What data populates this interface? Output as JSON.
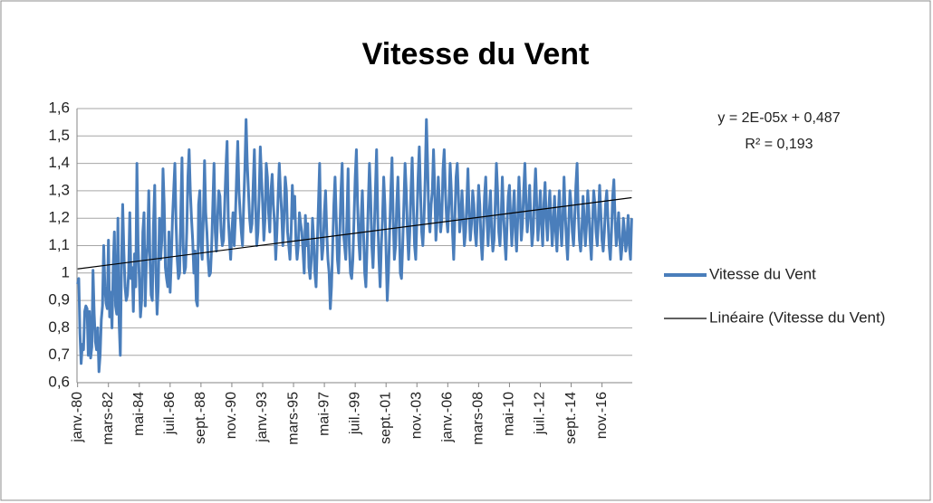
{
  "chart_data": {
    "type": "line",
    "title": "Vitesse du Vent",
    "annotations": [
      "y = 2E-05x + 0,487",
      "R² = 0,193"
    ],
    "legend": "right",
    "grid": true,
    "ylim": [
      0.6,
      1.6
    ],
    "yticks": [
      {
        "value": 0.6,
        "label": "0,6"
      },
      {
        "value": 0.7,
        "label": "0,7"
      },
      {
        "value": 0.8,
        "label": "0,8"
      },
      {
        "value": 0.9,
        "label": "0,9"
      },
      1,
      {
        "value": 1.1,
        "label": "1,1"
      },
      {
        "value": 1.2,
        "label": "1,2"
      },
      {
        "value": 1.3,
        "label": "1,3"
      },
      {
        "value": 1.4,
        "label": "1,4"
      },
      {
        "value": 1.5,
        "label": "1,5"
      },
      {
        "value": 1.6,
        "label": "1,6"
      }
    ],
    "categories": [
      "janv.-80",
      null,
      null,
      null,
      null,
      null,
      null,
      null,
      null,
      null,
      null,
      null,
      null,
      null,
      null,
      null,
      null,
      null,
      null,
      null,
      null,
      null,
      null,
      null,
      null,
      null,
      "mars-82",
      null,
      null,
      null,
      null,
      null,
      null,
      null,
      null,
      null,
      null,
      null,
      null,
      null,
      null,
      null,
      null,
      null,
      null,
      null,
      null,
      null,
      null,
      null,
      null,
      null,
      "mai-84",
      null,
      null,
      null,
      null,
      null,
      null,
      null,
      null,
      null,
      null,
      null,
      null,
      null,
      null,
      null,
      null,
      null,
      null,
      null,
      null,
      null,
      null,
      null,
      null,
      null,
      "juil.-86",
      null,
      null,
      null,
      null,
      null,
      null,
      null,
      null,
      null,
      null,
      null,
      null,
      null,
      null,
      null,
      null,
      null,
      null,
      null,
      null,
      null,
      null,
      null,
      null,
      null,
      "sept.-88",
      null,
      null,
      null,
      null,
      null,
      null,
      null,
      null,
      null,
      null,
      null,
      null,
      null,
      null,
      null,
      null,
      null,
      null,
      null,
      null,
      null,
      null,
      null,
      null,
      null,
      "nov.-90",
      null,
      null,
      null,
      null,
      null,
      null,
      null,
      null,
      null,
      null,
      null,
      null,
      null,
      null,
      null,
      null,
      null,
      null,
      null,
      null,
      null,
      null,
      null,
      null,
      null,
      "janv.-93",
      null,
      null,
      null,
      null,
      null,
      null,
      null,
      null,
      null,
      null,
      null,
      null,
      null,
      null,
      null,
      null,
      null,
      null,
      null,
      null,
      null,
      null,
      null,
      null,
      null,
      "mars-95",
      null,
      null,
      null,
      null,
      null,
      null,
      null,
      null,
      null,
      null,
      null,
      null,
      null,
      null,
      null,
      null,
      null,
      null,
      null,
      null,
      null,
      null,
      null,
      null,
      null,
      "mai-97",
      null,
      null,
      null,
      null,
      null,
      null,
      null,
      null,
      null,
      null,
      null,
      null,
      null,
      null,
      null,
      null,
      null,
      null,
      null,
      null,
      null,
      null,
      null,
      null,
      null,
      "juil.-99",
      null,
      null,
      null,
      null,
      null,
      null,
      null,
      null,
      null,
      null,
      null,
      null,
      null,
      null,
      null,
      null,
      null,
      null,
      null,
      null,
      null,
      null,
      null,
      null,
      null,
      "sept.-01",
      null,
      null,
      null,
      null,
      null,
      null,
      null,
      null,
      null,
      null,
      null,
      null,
      null,
      null,
      null,
      null,
      null,
      null,
      null,
      null,
      null,
      null,
      null,
      null,
      null,
      "nov.-03",
      null,
      null,
      null,
      null,
      null,
      null,
      null,
      null,
      null,
      null,
      null,
      null,
      null,
      null,
      null,
      null,
      null,
      null,
      null,
      null,
      null,
      null,
      null,
      null,
      null,
      "janv.-06",
      null,
      null,
      null,
      null,
      null,
      null,
      null,
      null,
      null,
      null,
      null,
      null,
      null,
      null,
      null,
      null,
      null,
      null,
      null,
      null,
      null,
      null,
      null,
      null,
      null,
      "mars-08",
      null,
      null,
      null,
      null,
      null,
      null,
      null,
      null,
      null,
      null,
      null,
      null,
      null,
      null,
      null,
      null,
      null,
      null,
      null,
      null,
      null,
      null,
      null,
      null,
      null,
      "mai-10",
      null,
      null,
      null,
      null,
      null,
      null,
      null,
      null,
      null,
      null,
      null,
      null,
      null,
      null,
      null,
      null,
      null,
      null,
      null,
      null,
      null,
      null,
      null,
      null,
      null,
      "juil.-12",
      null,
      null,
      null,
      null,
      null,
      null,
      null,
      null,
      null,
      null,
      null,
      null,
      null,
      null,
      null,
      null,
      null,
      null,
      null,
      null,
      null,
      null,
      null,
      null,
      null,
      "sept.-14",
      null,
      null,
      null,
      null,
      null,
      null,
      null,
      null,
      null,
      null,
      null,
      null,
      null,
      null,
      null,
      null,
      null,
      null,
      null,
      null,
      null,
      null,
      null,
      null,
      null,
      "nov.-16",
      null,
      null,
      null,
      null,
      null,
      null,
      null,
      null,
      null,
      null,
      null,
      null,
      null,
      null,
      null,
      null,
      null,
      null,
      null,
      null,
      null,
      null,
      null,
      null,
      null
    ],
    "series": [
      {
        "name": "Vitesse du Vent",
        "color": "#4a7ebb",
        "values": [
          0.96,
          0.98,
          0.78,
          0.67,
          0.74,
          0.72,
          0.86,
          0.88,
          0.87,
          0.7,
          0.86,
          0.69,
          0.73,
          1.01,
          0.85,
          0.75,
          0.72,
          0.8,
          0.64,
          0.7,
          0.83,
          0.88,
          1.1,
          0.95,
          0.89,
          0.87,
          1.12,
          0.84,
          0.93,
          0.8,
          1.02,
          1.15,
          0.88,
          0.85,
          1.2,
          0.82,
          0.7,
          1.03,
          1.25,
          1.08,
          0.95,
          0.9,
          0.92,
          1.0,
          1.22,
          0.98,
          1.02,
          0.86,
          1.07,
          0.95,
          1.4,
          1.1,
          0.98,
          0.84,
          0.9,
          1.15,
          1.22,
          0.88,
          1.05,
          1.1,
          1.3,
          1.05,
          0.92,
          0.9,
          1.18,
          1.32,
          1.0,
          0.85,
          0.95,
          1.2,
          1.05,
          1.12,
          1.38,
          1.25,
          1.02,
          0.98,
          0.95,
          1.15,
          0.93,
          1.05,
          1.2,
          1.3,
          1.4,
          1.18,
          1.05,
          0.98,
          1.0,
          1.22,
          1.42,
          1.1,
          1.0,
          1.02,
          1.15,
          1.35,
          1.45,
          1.3,
          1.2,
          1.12,
          1.0,
          1.08,
          0.9,
          0.88,
          1.25,
          1.3,
          1.1,
          1.05,
          1.2,
          1.41,
          1.22,
          1.15,
          1.05,
          0.99,
          1.0,
          1.1,
          1.25,
          1.4,
          1.15,
          1.08,
          1.2,
          1.3,
          1.28,
          1.15,
          1.1,
          1.12,
          1.25,
          1.38,
          1.48,
          1.2,
          1.12,
          1.05,
          1.15,
          1.22,
          1.1,
          1.2,
          1.35,
          1.48,
          1.3,
          1.22,
          1.15,
          1.1,
          1.25,
          1.38,
          1.56,
          1.4,
          1.3,
          1.2,
          1.15,
          1.18,
          1.32,
          1.45,
          1.25,
          1.1,
          1.15,
          1.28,
          1.46,
          1.35,
          1.25,
          1.12,
          1.2,
          1.4,
          1.35,
          1.22,
          1.15,
          1.3,
          1.36,
          1.25,
          1.18,
          1.05,
          1.15,
          1.28,
          1.4,
          1.3,
          1.22,
          1.1,
          1.2,
          1.35,
          1.3,
          1.15,
          1.1,
          1.05,
          1.15,
          1.32,
          1.2,
          1.28,
          1.12,
          1.05,
          1.1,
          1.22,
          1.18,
          1.15,
          1.08,
          1.0,
          1.21,
          1.1,
          1.18,
          1.02,
          0.98,
          1.05,
          1.2,
          1.12,
          1.0,
          0.95,
          1.1,
          1.25,
          1.4,
          1.15,
          1.05,
          1.1,
          1.22,
          1.3,
          1.15,
          1.05,
          1.0,
          0.87,
          0.95,
          1.1,
          1.25,
          1.35,
          1.2,
          1.05,
          1.0,
          1.15,
          1.3,
          1.4,
          1.15,
          1.1,
          1.05,
          1.2,
          1.38,
          1.1,
          1.0,
          0.98,
          1.05,
          1.2,
          1.35,
          1.45,
          1.25,
          1.12,
          1.05,
          1.2,
          1.3,
          1.15,
          1.0,
          0.95,
          1.1,
          1.25,
          1.4,
          1.28,
          1.1,
          1.02,
          1.15,
          1.3,
          1.45,
          1.2,
          1.05,
          0.95,
          1.1,
          1.2,
          1.35,
          1.25,
          1.08,
          0.9,
          1.0,
          1.15,
          1.3,
          1.42,
          1.2,
          1.05,
          1.1,
          1.25,
          1.35,
          1.2,
          1.0,
          0.98,
          1.1,
          1.25,
          1.4,
          1.3,
          1.15,
          1.05,
          1.15,
          1.3,
          1.42,
          1.25,
          1.1,
          1.05,
          1.2,
          1.35,
          1.46,
          1.3,
          1.15,
          1.1,
          1.2,
          1.35,
          1.56,
          1.4,
          1.2,
          1.15,
          1.25,
          1.3,
          1.45,
          1.3,
          1.12,
          1.2,
          1.35,
          1.25,
          1.15,
          1.2,
          1.38,
          1.45,
          1.3,
          1.2,
          1.15,
          1.25,
          1.4,
          1.3,
          1.15,
          1.05,
          1.2,
          1.35,
          1.4,
          1.28,
          1.15,
          1.2,
          1.3,
          1.2,
          1.1,
          1.15,
          1.25,
          1.38,
          1.22,
          1.12,
          1.18,
          1.3,
          1.25,
          1.15,
          1.1,
          1.2,
          1.32,
          1.25,
          1.12,
          1.05,
          1.15,
          1.28,
          1.35,
          1.2,
          1.1,
          1.22,
          1.3,
          1.15,
          1.08,
          1.12,
          1.25,
          1.4,
          1.3,
          1.15,
          1.1,
          1.2,
          1.35,
          1.22,
          1.12,
          1.05,
          1.18,
          1.28,
          1.32,
          1.2,
          1.1,
          1.22,
          1.3,
          1.15,
          1.08,
          1.2,
          1.35,
          1.25,
          1.12,
          1.18,
          1.3,
          1.4,
          1.25,
          1.15,
          1.22,
          1.32,
          1.2,
          1.1,
          1.15,
          1.28,
          1.38,
          1.25,
          1.12,
          1.2,
          1.3,
          1.18,
          1.1,
          1.25,
          1.33,
          1.2,
          1.12,
          1.22,
          1.3,
          1.2,
          1.1,
          1.18,
          1.28,
          1.15,
          1.08,
          1.2,
          1.3,
          1.18,
          1.1,
          1.2,
          1.35,
          1.22,
          1.12,
          1.05,
          1.18,
          1.3,
          1.25,
          1.15,
          1.1,
          1.2,
          1.32,
          1.4,
          1.22,
          1.12,
          1.08,
          1.15,
          1.28,
          1.2,
          1.1,
          1.18,
          1.3,
          1.22,
          1.12,
          1.05,
          1.18,
          1.3,
          1.25,
          1.15,
          1.1,
          1.2,
          1.32,
          1.22,
          1.12,
          1.08,
          1.15,
          1.25,
          1.3,
          1.2,
          1.1,
          1.05,
          1.15,
          1.28,
          1.34,
          1.2,
          1.1,
          1.15,
          1.22,
          1.12,
          1.05,
          1.1,
          1.2,
          1.15,
          1.08,
          1.12,
          1.21,
          1.1,
          1.05,
          1.2
        ]
      }
    ],
    "trendline": {
      "name": "Linéaire (Vitesse du Vent)",
      "color": "#000000",
      "values": [
        1.015,
        1.275
      ]
    }
  }
}
